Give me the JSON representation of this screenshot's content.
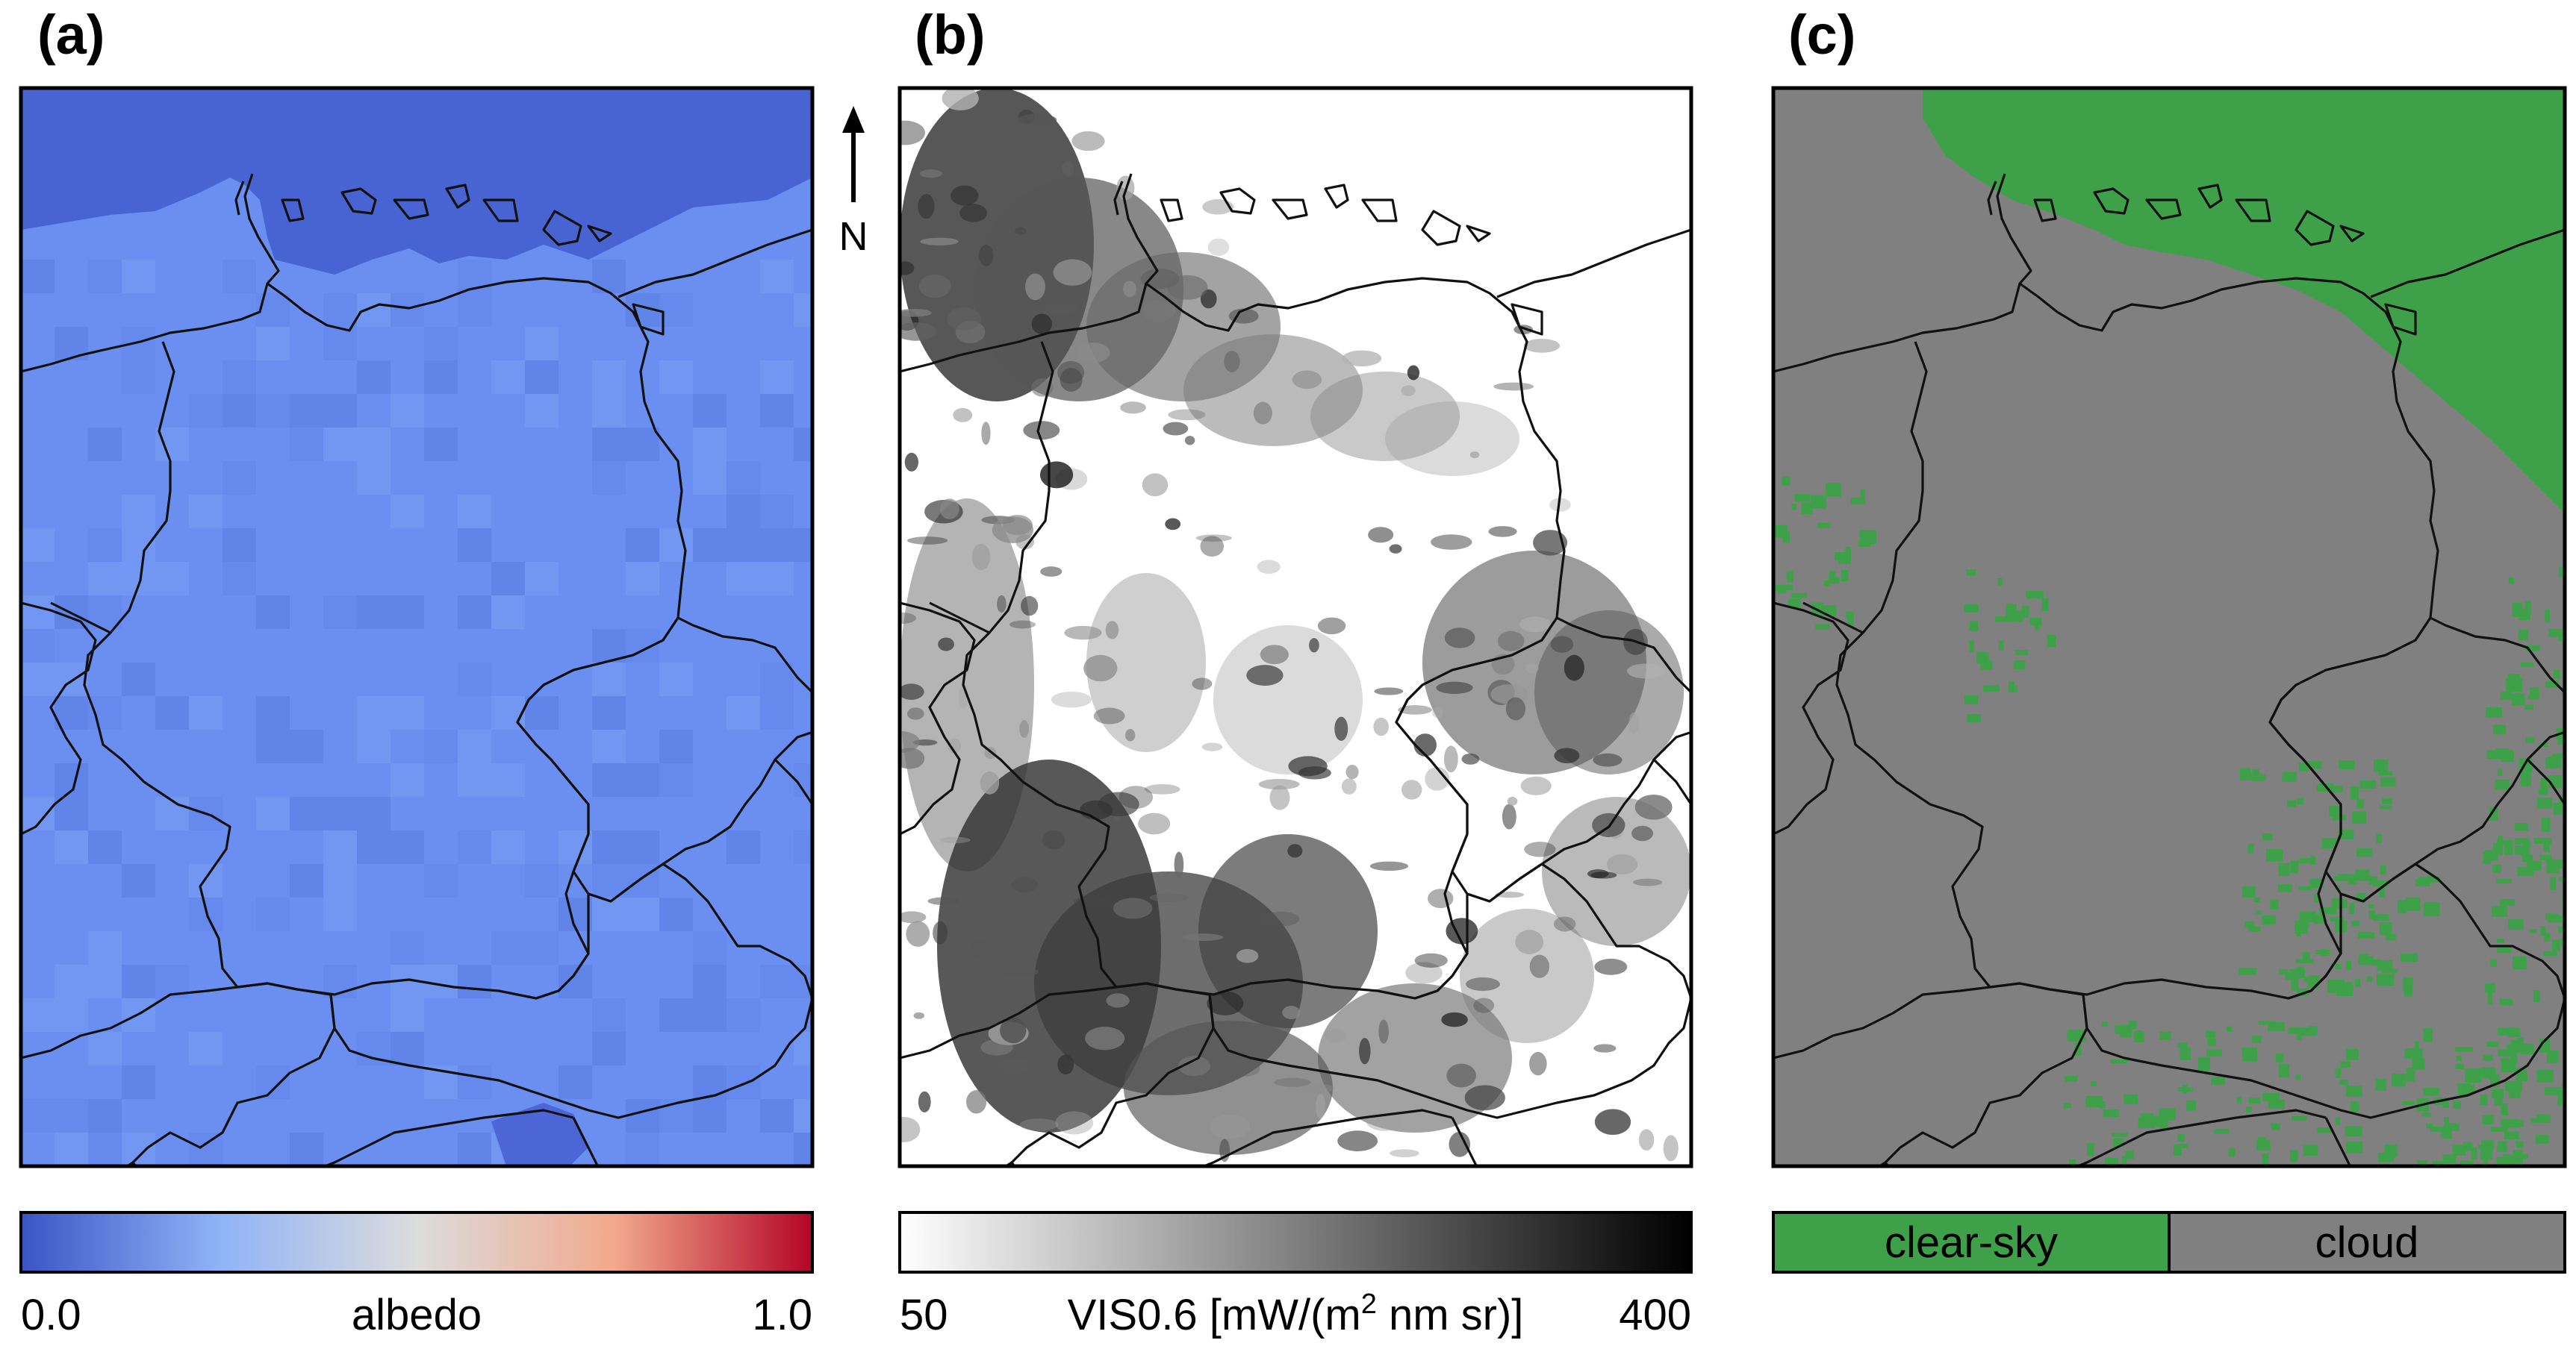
{
  "panels": [
    {
      "letter": "(a)",
      "colorbar": {
        "min_label": "0.0",
        "label": "albedo",
        "max_label": "1.0",
        "stops": [
          "#3b54c4",
          "#8fb3f7",
          "#dcdcdc",
          "#f2a98c",
          "#b40426"
        ]
      }
    },
    {
      "letter": "(b)",
      "colorbar": {
        "min_label": "50",
        "label_main": "VIS0.6 [mW/(m",
        "label_sup": "2",
        "label_tail": " nm sr)]",
        "max_label": "400",
        "stops": [
          "#ffffff",
          "#000000"
        ]
      }
    },
    {
      "letter": "(c)",
      "legend": [
        {
          "label": "clear-sky",
          "color": "#3fa04a"
        },
        {
          "label": "cloud",
          "color": "#808080"
        }
      ]
    }
  ],
  "north_arrow": {
    "label": "N"
  },
  "colors": {
    "albedo_ocean": "#4863d2",
    "albedo_land": "#6a8ff0",
    "vis_bright": "#ffffff",
    "vis_dark": "#1a1a1a",
    "cloud": "#808080",
    "clear_sky": "#3fa04a",
    "border": "#111111"
  }
}
